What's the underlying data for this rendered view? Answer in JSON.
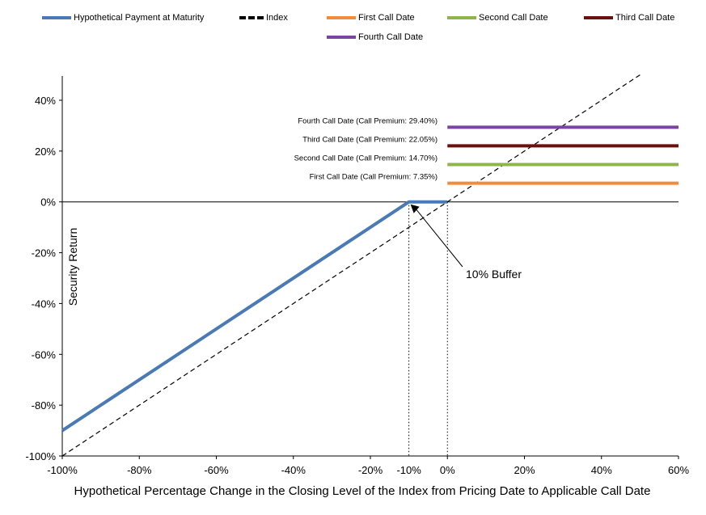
{
  "chart_data": {
    "type": "line",
    "title": "",
    "xlabel": "Hypothetical Percentage Change in the Closing Level of the Index from Pricing Date to Applicable Call Date",
    "ylabel": "Security Return",
    "xlim": [
      -100,
      60
    ],
    "ylim": [
      -100,
      50
    ],
    "x_ticks": [
      "-100%",
      "-80%",
      "-60%",
      "-40%",
      "-20%",
      "0%",
      "20%",
      "40%",
      "60%"
    ],
    "x_tick_values": [
      -100,
      -80,
      -60,
      -40,
      -20,
      0,
      20,
      40,
      60
    ],
    "extra_x_tick": {
      "label": "-10%",
      "value": -10
    },
    "y_ticks": [
      "-100%",
      "-80%",
      "-60%",
      "-40%",
      "-20%",
      "0%",
      "20%",
      "40%"
    ],
    "y_tick_values": [
      -100,
      -80,
      -60,
      -40,
      -20,
      0,
      20,
      40
    ],
    "legend_position": "top",
    "series": [
      {
        "name": "Hypothetical Payment at Maturity",
        "color": "#4a7ab5",
        "style": "solid",
        "x": [
          -100,
          -10,
          0
        ],
        "y": [
          -90,
          0,
          0
        ]
      },
      {
        "name": "Index",
        "color": "#000000",
        "style": "dashed",
        "x": [
          -100,
          50
        ],
        "y": [
          -100,
          50
        ]
      },
      {
        "name": "First Call Date",
        "color": "#f08c3c",
        "style": "solid",
        "x": [
          0,
          60
        ],
        "y": [
          7.35,
          7.35
        ],
        "label": "First Call Date (Call Premium: 7.35%)"
      },
      {
        "name": "Second Call Date",
        "color": "#8db54a",
        "style": "solid",
        "x": [
          0,
          60
        ],
        "y": [
          14.7,
          14.7
        ],
        "label": "Second Call Date (Call Premium: 14.70%)"
      },
      {
        "name": "Third Call Date",
        "color": "#6b0f0f",
        "style": "solid",
        "x": [
          0,
          60
        ],
        "y": [
          22.05,
          22.05
        ],
        "label": "Third Call Date (Call Premium: 22.05%)"
      },
      {
        "name": "Fourth Call Date",
        "color": "#7a44a0",
        "style": "solid",
        "x": [
          0,
          60
        ],
        "y": [
          29.4,
          29.4
        ],
        "label": "Fourth Call Date (Call Premium: 29.40%)"
      }
    ],
    "annotations": [
      {
        "text": "10% Buffer",
        "point_x": -10,
        "point_y": 0
      }
    ]
  }
}
